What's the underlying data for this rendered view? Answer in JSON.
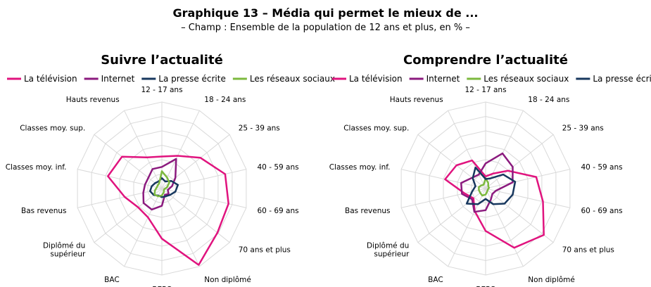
{
  "header": {
    "title": "Graphique 13 – Média qui permet le mieux de ...",
    "subtitle": "– Champ : Ensemble de la population de 12 ans et plus, en % –"
  },
  "colors": {
    "tv": "#e0137e",
    "internet": "#8b1a7e",
    "presse": "#17375e",
    "reseaux": "#7cb93e",
    "grid": "#d9d9d9"
  },
  "chart_data": [
    {
      "type": "radar",
      "title": "Suivre l’actualité",
      "categories": [
        "12 - 17 ans",
        "18 - 24 ans",
        "25 - 39 ans",
        "40 - 59 ans",
        "60 - 69 ans",
        "70 ans et plus",
        "Non diplômé",
        "BEPC",
        "BAC",
        "Diplômé du supérieur",
        "Bas revenus",
        "Classes moy. inf.",
        "Classes moy. sup.",
        "Hauts revenus"
      ],
      "rmax": 100,
      "grid_levels": 6,
      "legend_position": "top",
      "series": [
        {
          "name": "La télévision",
          "key": "tv",
          "values": [
            37,
            42,
            57,
            75,
            79,
            82,
            98,
            58,
            37,
            35,
            44,
            64,
            59,
            40
          ]
        },
        {
          "name": "Internet",
          "key": "internet",
          "values": [
            25,
            38,
            20,
            12,
            7,
            10,
            8,
            20,
            27,
            27,
            22,
            20,
            20,
            25
          ]
        },
        {
          "name": "La presse écrite",
          "key": "presse",
          "values": [
            12,
            9,
            14,
            19,
            16,
            12,
            10,
            10,
            9,
            12,
            14,
            12,
            10,
            9
          ]
        },
        {
          "name": "Les réseaux sociaux",
          "key": "reseaux",
          "values": [
            20,
            14,
            11,
            6,
            3,
            3,
            5,
            8,
            10,
            11,
            8,
            6,
            6,
            7
          ]
        }
      ]
    },
    {
      "type": "radar",
      "title": "Comprendre l’actualité",
      "categories": [
        "12 - 17 ans",
        "18 - 24 ans",
        "25 - 39 ans",
        "40 - 59 ans",
        "60 - 69 ans",
        "70 ans et plus",
        "Non diplômé",
        "BEPC",
        "BAC",
        "Diplômé du supérieur",
        "Bas revenus",
        "Classes moy. inf.",
        "Classes moy. sup.",
        "Hauts revenus"
      ],
      "rmax": 100,
      "grid_levels": 6,
      "legend_position": "top",
      "series": [
        {
          "name": "La télévision",
          "key": "tv",
          "values": [
            14,
            19,
            33,
            60,
            68,
            86,
            76,
            49,
            29,
            18,
            25,
            48,
            43,
            36
          ]
        },
        {
          "name": "Internet",
          "key": "internet",
          "values": [
            29,
            45,
            40,
            32,
            12,
            10,
            14,
            25,
            30,
            20,
            28,
            29,
            20,
            18
          ]
        },
        {
          "name": "Les réseaux sociaux",
          "key": "reseaux",
          "values": [
            12,
            7,
            4,
            4,
            3,
            3,
            4,
            7,
            9,
            8,
            8,
            8,
            6,
            5
          ]
        },
        {
          "name": "La presse écrite",
          "key": "presse",
          "values": [
            11,
            13,
            26,
            35,
            32,
            28,
            20,
            12,
            20,
            28,
            16,
            12,
            19,
            27
          ]
        }
      ]
    }
  ]
}
